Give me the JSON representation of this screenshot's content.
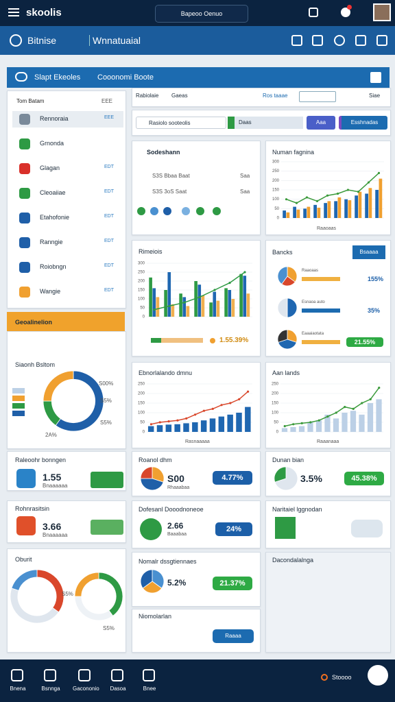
{
  "topbar": {
    "brand": "skoolis",
    "search": "Bapeoo Oenuo"
  },
  "navbar": {
    "title": "Bitnise",
    "subtitle": "Wnnatuaial"
  },
  "section": {
    "title": "Slapt Ekeoles",
    "subtitle": "Cooonomi Boote"
  },
  "sidebar": {
    "header": "Tom Batam",
    "header_badge": "EEE",
    "items": [
      {
        "label": "Rennoraia",
        "badge": "EEE"
      },
      {
        "label": "Grnonda",
        "badge": ""
      },
      {
        "label": "Glagan",
        "badge": "EDT"
      },
      {
        "label": "Cleoaiiae",
        "badge": "EDT"
      },
      {
        "label": "Etahofonie",
        "badge": "EDT"
      },
      {
        "label": "Ranngie",
        "badge": "EDT"
      },
      {
        "label": "Roiobngn",
        "badge": "EDT"
      },
      {
        "label": "Wangie",
        "badge": "EDT"
      }
    ]
  },
  "tabs": [
    "Rabiolaie",
    "Gaeas",
    "Ros taaae",
    "Siae"
  ],
  "search": {
    "placeholder": "Rasiolo sooteolis",
    "select": "Daas",
    "buttons": [
      "Aaa",
      "Esshnadas"
    ]
  },
  "cards": {
    "sodeshann": {
      "title": "Sodeshann",
      "rows": [
        {
          "text": "S3S Bbaa Baat",
          "right": "Saa"
        },
        {
          "text": "S3S 3oS Saat",
          "right": "Saa"
        }
      ]
    },
    "numan": {
      "title": "Numan fagnina",
      "xlabel": "Raaoaas"
    },
    "rimeiois": {
      "title": "Rimeiois",
      "value": "1.55.39%"
    },
    "bancks": {
      "title": "Bancks",
      "button": "Bsaaaa",
      "rows": [
        {
          "label": "Raaoaas",
          "value": "155%"
        },
        {
          "label": "Esnaoa auto",
          "value": "35%"
        },
        {
          "label": "Eaaaiaotata",
          "value": "21.55%"
        }
      ]
    },
    "ebnor": {
      "title": "Ebnorlalando dmnu",
      "xlabel": "Rasnaaaaa"
    },
    "aan": {
      "title": "Aan lands",
      "xlabel": "Raaanaaa"
    },
    "geo": {
      "title": "Geoalinelion",
      "subtitle": "Siaonh Bsltom",
      "callouts": [
        "S00%",
        "S5%",
        "S5%",
        "2A%"
      ]
    },
    "raleo": {
      "title": "Raleoohr bonngen",
      "value": "1.55",
      "sub": "Bnaaaaaa"
    },
    "rohn": {
      "title": "Rohnrasitsin",
      "value": "3.66",
      "sub": "Bnaaaaaa"
    },
    "oburit": {
      "title": "Oburit",
      "callouts": [
        "S5%",
        "S5%"
      ]
    },
    "roanol": {
      "title": "Roanol dhm",
      "value": "S00",
      "pill": "4.77%",
      "sub": "Rhaaabaa"
    },
    "dofes": {
      "title": "Dofesanl Dooodnoneoe",
      "value": "2.66",
      "pill": "24%",
      "sub": "Baaabaa"
    },
    "nomalr": {
      "title": "Nomalr dssgtiennaes",
      "value": "5.2%",
      "pill": "21.37%"
    },
    "niomo": {
      "title": "Niomolarlan",
      "button": "Raaaa"
    },
    "dunan": {
      "title": "Dunan bian",
      "value": "3.5%",
      "pill": "45.38%"
    },
    "narit": {
      "title": "Naritaiel lggnodan"
    },
    "dacon": {
      "title": "Dacondalalnga"
    }
  },
  "charts": {
    "numan": {
      "type": "barline",
      "ylim": [
        0,
        300
      ],
      "yticks": [
        0,
        50,
        100,
        150,
        200,
        250,
        300
      ],
      "series": [
        {
          "color": "#1f67b1",
          "values": [
            40,
            60,
            50,
            70,
            80,
            90,
            100,
            120,
            130,
            150
          ]
        },
        {
          "color": "#f0a030",
          "values": [
            30,
            45,
            60,
            55,
            90,
            110,
            95,
            140,
            160,
            210
          ]
        }
      ],
      "line": {
        "color": "#3a9a3a",
        "values": [
          100,
          80,
          110,
          90,
          120,
          130,
          150,
          140,
          190,
          240
        ]
      }
    },
    "rimeiois": {
      "type": "barline",
      "ylim": [
        0,
        300
      ],
      "yticks": [
        0,
        50,
        100,
        150,
        200,
        250,
        300
      ],
      "series": [
        {
          "color": "#2e9a44",
          "values": [
            220,
            150,
            130,
            200,
            80,
            160,
            240
          ]
        },
        {
          "color": "#1f67b1",
          "values": [
            160,
            250,
            110,
            180,
            140,
            150,
            230
          ]
        },
        {
          "color": "#f0b050",
          "values": [
            110,
            70,
            60,
            120,
            90,
            100,
            130
          ]
        }
      ],
      "line": {
        "color": "#2e9a44",
        "values": [
          40,
          60,
          80,
          110,
          150,
          190,
          250
        ]
      }
    },
    "ebnor": {
      "type": "barline",
      "ylim": [
        0,
        250
      ],
      "yticks": [
        0,
        50,
        100,
        150,
        200,
        250
      ],
      "series": [
        {
          "color": "#1f67b1",
          "values": [
            30,
            35,
            38,
            40,
            45,
            50,
            60,
            70,
            80,
            90,
            100,
            130
          ]
        }
      ],
      "line": {
        "color": "#d9472b",
        "values": [
          40,
          50,
          55,
          60,
          70,
          90,
          110,
          120,
          140,
          150,
          170,
          210
        ]
      }
    },
    "aan": {
      "type": "barline",
      "ylim": [
        0,
        250
      ],
      "yticks": [
        0,
        50,
        100,
        150,
        200,
        250
      ],
      "series": [
        {
          "color": "#bcd0e6",
          "values": [
            20,
            25,
            30,
            50,
            60,
            90,
            70,
            100,
            110,
            90,
            150,
            170
          ]
        }
      ],
      "line": {
        "color": "#3a9a3a",
        "values": [
          30,
          40,
          45,
          50,
          60,
          80,
          100,
          130,
          120,
          150,
          170,
          230
        ]
      }
    },
    "geo": {
      "type": "donut",
      "values": [
        60,
        15,
        25
      ],
      "colors": [
        "#1f5fa8",
        "#2e9a44",
        "#f0a030"
      ]
    },
    "bancks1": {
      "type": "pie",
      "values": [
        35,
        25,
        40
      ],
      "colors": [
        "#f0a030",
        "#d9472b",
        "#4a90d0"
      ]
    },
    "bancks2": {
      "type": "pie",
      "values": [
        50,
        50
      ],
      "colors": [
        "#1f67b1",
        "#dfe6ee"
      ]
    },
    "bancks3": {
      "type": "pie",
      "values": [
        30,
        40,
        30
      ],
      "colors": [
        "#f0a030",
        "#1f67b1",
        "#333333"
      ]
    },
    "roanol": {
      "type": "pie",
      "values": [
        30,
        45,
        25
      ],
      "colors": [
        "#f0a030",
        "#1f5fa8",
        "#d9472b"
      ]
    },
    "dunan": {
      "type": "pie",
      "values": [
        70,
        30
      ],
      "colors": [
        "#dfe6ee",
        "#2e9a44"
      ]
    },
    "nomalr": {
      "type": "pie",
      "values": [
        35,
        30,
        35
      ],
      "colors": [
        "#4a90d0",
        "#f0a030",
        "#1f5fa8"
      ]
    },
    "oburit1": {
      "type": "donut",
      "values": [
        35,
        45,
        20
      ],
      "colors": [
        "#d9472b",
        "#dfe6ee",
        "#4a90d0"
      ]
    },
    "oburit2": {
      "type": "donut",
      "values": [
        40,
        35,
        25
      ],
      "colors": [
        "#2e9a44",
        "#eef2f6",
        "#f0a030"
      ]
    }
  },
  "bottom": {
    "items": [
      "Bnena",
      "Bsnnga",
      "Gacononio",
      "Dasoa",
      "Bnee"
    ],
    "right": "Stoooo"
  }
}
